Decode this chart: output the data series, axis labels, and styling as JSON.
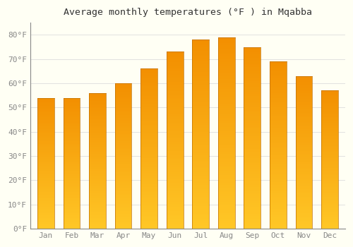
{
  "title": "Average monthly temperatures (°F ) in Mqabba",
  "months": [
    "Jan",
    "Feb",
    "Mar",
    "Apr",
    "May",
    "Jun",
    "Jul",
    "Aug",
    "Sep",
    "Oct",
    "Nov",
    "Dec"
  ],
  "values": [
    54,
    54,
    56,
    60,
    66,
    73,
    78,
    79,
    75,
    69,
    63,
    57
  ],
  "bar_color_main": "#FFA500",
  "bar_color_light": "#FFD060",
  "background_color": "#FFFFF4",
  "grid_color": "#DDDDDD",
  "yticks": [
    0,
    10,
    20,
    30,
    40,
    50,
    60,
    70,
    80
  ],
  "ylim": [
    0,
    85
  ],
  "title_fontsize": 9.5,
  "tick_fontsize": 8,
  "bar_width": 0.65
}
